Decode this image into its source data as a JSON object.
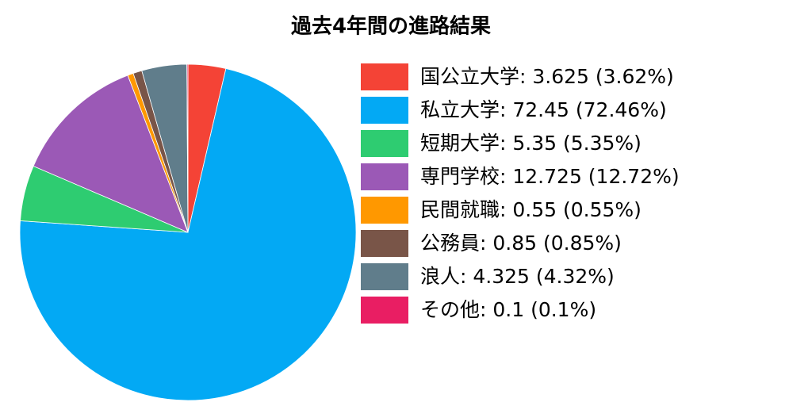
{
  "chart_data": {
    "type": "pie",
    "title": "過去4年間の進路結果",
    "categories": [
      "国公立大学",
      "私立大学",
      "短期大学",
      "専門学校",
      "民間就職",
      "公務員",
      "浪人",
      "その他"
    ],
    "values": [
      3.625,
      72.45,
      5.35,
      12.725,
      0.55,
      0.85,
      4.325,
      0.1
    ],
    "legend_labels": [
      "国公立大学: 3.625 (3.62%)",
      "私立大学: 72.45 (72.46%)",
      "短期大学: 5.35 (5.35%)",
      "専門学校: 12.725 (12.72%)",
      "民間就職: 0.55 (0.55%)",
      "公務員: 0.85 (0.85%)",
      "浪人: 4.325 (4.32%)",
      "その他: 0.1 (0.1%)"
    ],
    "colors": [
      "#f44336",
      "#03a9f4",
      "#2ecc71",
      "#9b59b6",
      "#ff9800",
      "#795548",
      "#607d8b",
      "#e91e63"
    ],
    "legend": "right"
  }
}
